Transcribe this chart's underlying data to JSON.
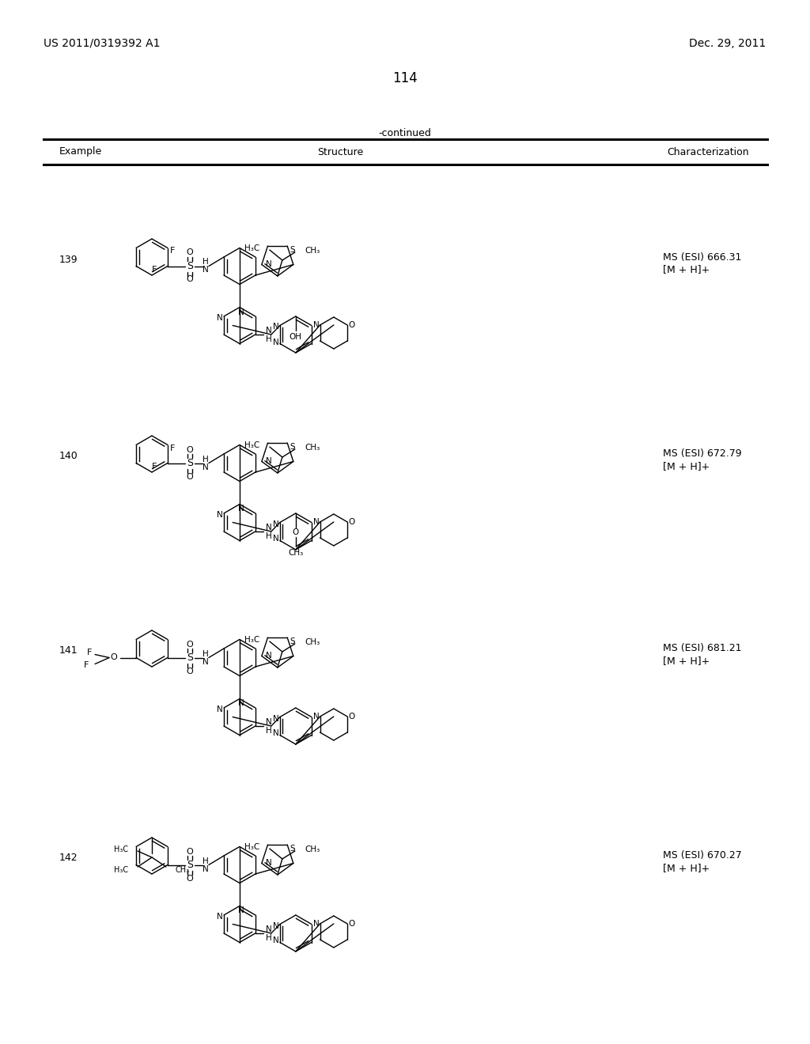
{
  "page_number": "114",
  "patent_number": "US 2011/0319392 A1",
  "patent_date": "Dec. 29, 2011",
  "continued_label": "-continued",
  "col_headers": [
    "Example",
    "Structure",
    "Characterization"
  ],
  "rows": [
    {
      "example": "139",
      "char_line1": "MS (ESI) 666.31",
      "char_line2": "[M + H]+"
    },
    {
      "example": "140",
      "char_line1": "MS (ESI) 672.79",
      "char_line2": "[M + H]+"
    },
    {
      "example": "141",
      "char_line1": "MS (ESI) 681.21",
      "char_line2": "[M + H]+"
    },
    {
      "example": "142",
      "char_line1": "MS (ESI) 670.27",
      "char_line2": "[M + H]+"
    }
  ],
  "background_color": "#ffffff",
  "text_color": "#000000"
}
